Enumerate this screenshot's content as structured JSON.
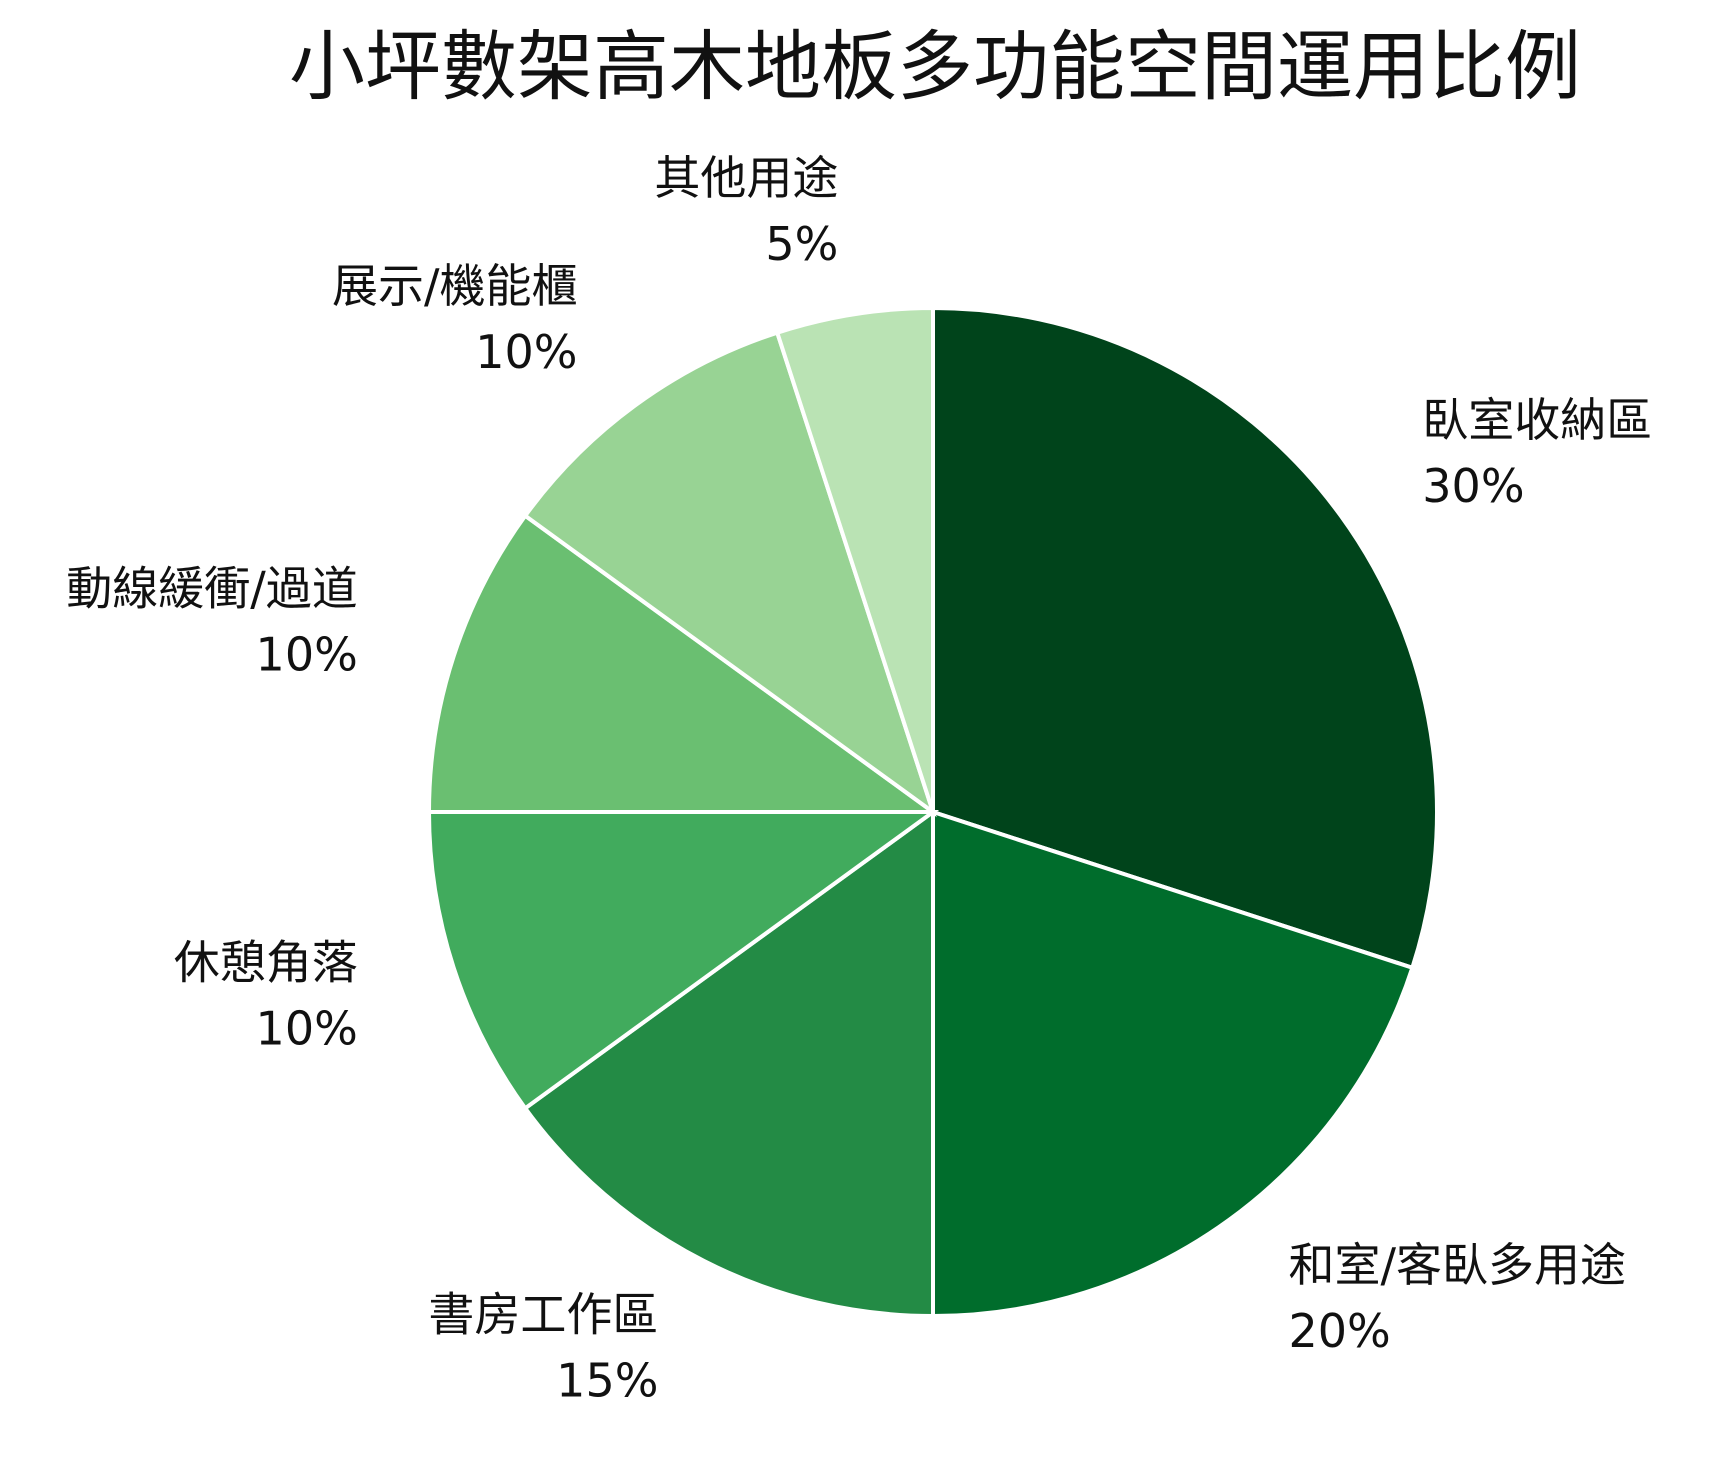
{
  "chart_data": {
    "type": "pie",
    "title": "小坪數架高木地板多功能空間運用比例",
    "categories": [
      "臥室收納區",
      "和室/客臥多用途",
      "書房工作區",
      "休憩角落",
      "動線緩衝/過道",
      "展示/機能櫃",
      "其他用途"
    ],
    "values": [
      30,
      20,
      15,
      10,
      10,
      10,
      5
    ],
    "value_labels": [
      "30%",
      "20%",
      "15%",
      "10%",
      "10%",
      "10%",
      "5%"
    ],
    "colors": [
      "#00441b",
      "#006d2c",
      "#238b45",
      "#41ab5d",
      "#6abf71",
      "#98d394",
      "#bae3b4"
    ]
  }
}
